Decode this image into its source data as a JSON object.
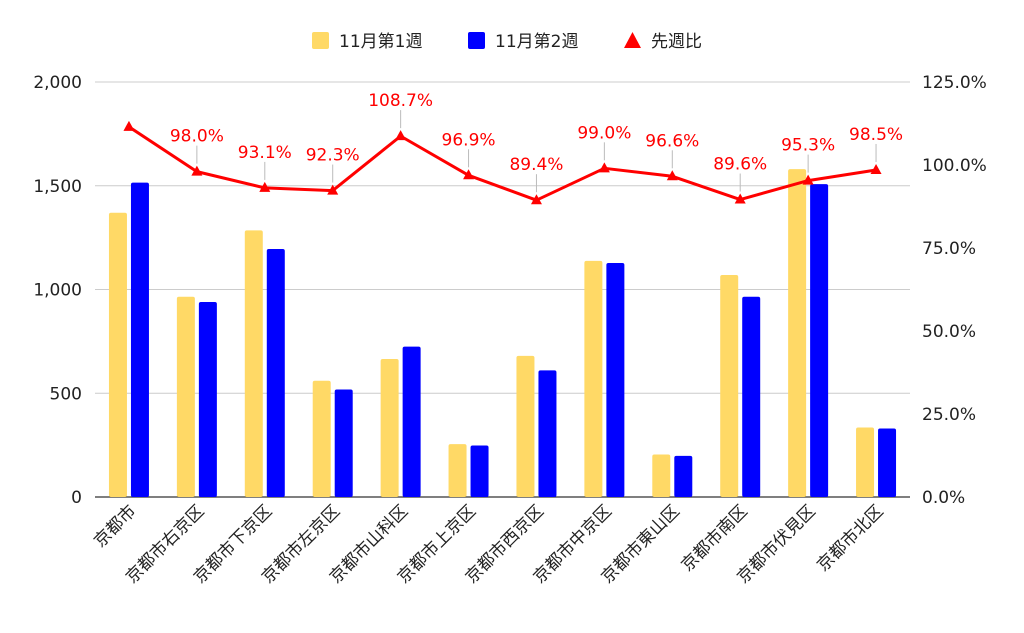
{
  "chart_data": {
    "type": "bar",
    "categories": [
      "京都市",
      "京都市右京区",
      "京都市下京区",
      "京都市左京区",
      "京都市山科区",
      "京都市上京区",
      "京都市西京区",
      "京都市中京区",
      "京都市東山区",
      "京都市南区",
      "京都市伏見区",
      "京都市北区"
    ],
    "series": [
      {
        "name": "11月第1週",
        "color": "#ffd966",
        "values": [
          1370,
          965,
          1285,
          560,
          665,
          255,
          680,
          1138,
          205,
          1070,
          1580,
          335
        ]
      },
      {
        "name": "11月第2週",
        "color": "#0000ff",
        "values": [
          1515,
          940,
          1195,
          518,
          725,
          248,
          610,
          1128,
          198,
          965,
          1508,
          330
        ]
      }
    ],
    "line_series": {
      "name": "先週比",
      "color": "#ff0000",
      "marker": "triangle",
      "axis": "right",
      "values": [
        111.5,
        98.0,
        93.1,
        92.3,
        108.7,
        96.9,
        89.4,
        99.0,
        96.6,
        89.6,
        95.3,
        98.5
      ],
      "labels": [
        "",
        "98.0%",
        "93.1%",
        "92.3%",
        "108.7%",
        "96.9%",
        "89.4%",
        "99.0%",
        "96.6%",
        "89.6%",
        "95.3%",
        "98.5%"
      ]
    },
    "y_left": {
      "ylim": [
        0,
        2000
      ],
      "ticks": [
        "0",
        "500",
        "1,000",
        "1,500",
        "2,000"
      ],
      "tick_values": [
        0,
        500,
        1000,
        1500,
        2000
      ]
    },
    "y_right": {
      "ylim": [
        0,
        125
      ],
      "ticks": [
        "0.0%",
        "25.0%",
        "50.0%",
        "75.0%",
        "100.0%",
        "125.0%"
      ],
      "tick_values": [
        0,
        25,
        50,
        75,
        100,
        125
      ]
    },
    "legend_position": "top-center",
    "grid": true
  }
}
